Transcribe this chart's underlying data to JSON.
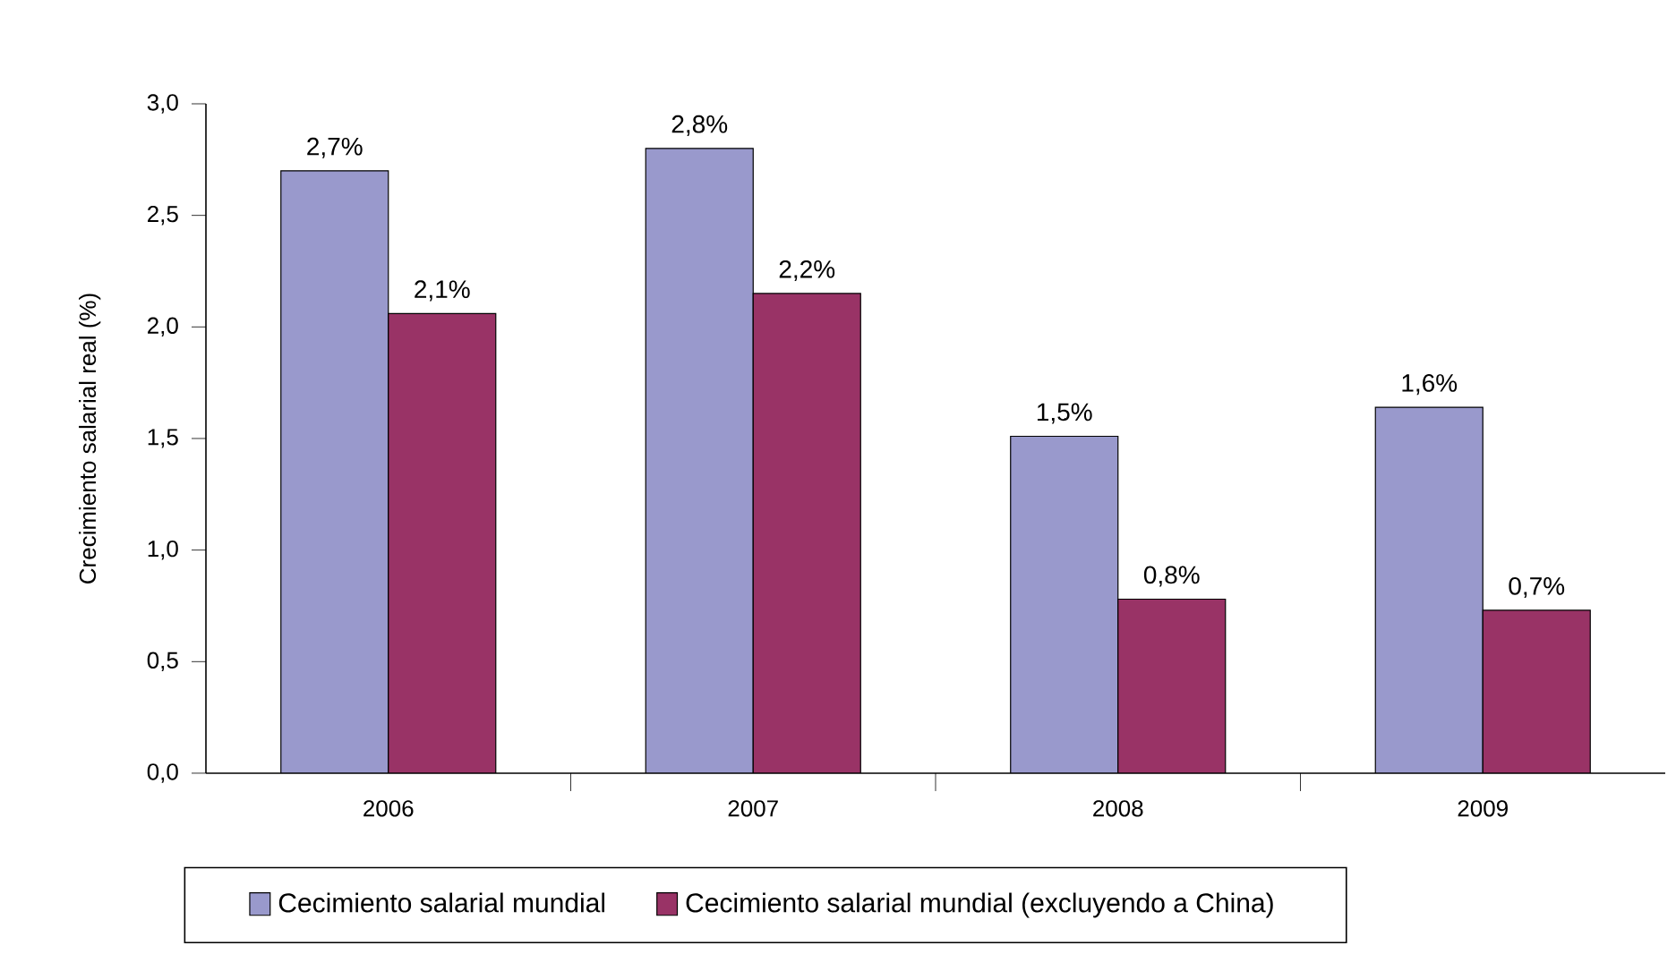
{
  "chart_data": {
    "type": "bar",
    "ylabel": "Crecimiento salarial real (%)",
    "categories": [
      "2006",
      "2007",
      "2008",
      "2009"
    ],
    "series": [
      {
        "name": "Cecimiento salarial mundial",
        "color": "#9999cc",
        "values": [
          2.7,
          2.8,
          1.51,
          1.64
        ],
        "value_labels": [
          "2,7%",
          "2,8%",
          "1,5%",
          "1,6%"
        ]
      },
      {
        "name": "Cecimiento salarial mundial (excluyendo a China)",
        "color": "#993366",
        "values": [
          2.06,
          2.15,
          0.78,
          0.73
        ],
        "value_labels": [
          "2,1%",
          "2,2%",
          "0,8%",
          "0,7%"
        ]
      }
    ],
    "ylim": [
      0,
      3
    ],
    "yticks": [
      {
        "value": 0,
        "label": "0,0"
      },
      {
        "value": 0.5,
        "label": "0,5"
      },
      {
        "value": 1,
        "label": "1,0"
      },
      {
        "value": 1.5,
        "label": "1,5"
      },
      {
        "value": 2,
        "label": "2,0"
      },
      {
        "value": 2.5,
        "label": "2,5"
      },
      {
        "value": 3,
        "label": "3,0"
      }
    ],
    "grid": false,
    "legend": "bottom"
  }
}
